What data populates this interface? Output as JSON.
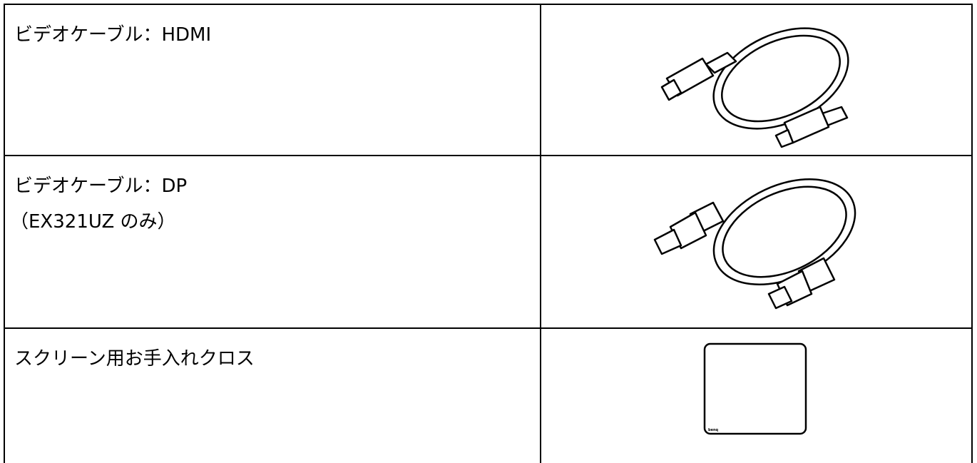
{
  "table": {
    "rows": [
      [
        "ビデオケーブル：HDMI"
      ],
      [
        "ビデオケーブル：DP",
        "（EX321UZ のみ）"
      ],
      [
        "スクリーン用お手入れクロス"
      ]
    ],
    "cloth_brand": "benq"
  }
}
